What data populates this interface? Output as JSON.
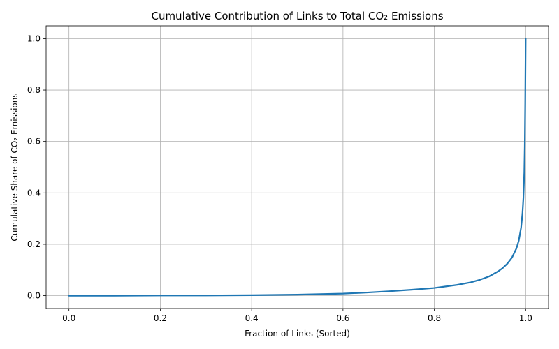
{
  "chart_data": {
    "type": "line",
    "title": "Cumulative Contribution of Links to Total CO₂ Emissions",
    "xlabel": "Fraction of Links (Sorted)",
    "ylabel": "Cumulative Share of CO₂ Emissions",
    "xlim": [
      -0.05,
      1.05
    ],
    "ylim": [
      -0.05,
      1.05
    ],
    "x_ticks": [
      0.0,
      0.2,
      0.4,
      0.6,
      0.8,
      1.0
    ],
    "x_tick_labels": [
      "0.0",
      "0.2",
      "0.4",
      "0.6",
      "0.8",
      "1.0"
    ],
    "y_ticks": [
      0.0,
      0.2,
      0.4,
      0.6,
      0.8,
      1.0
    ],
    "y_tick_labels": [
      "0.0",
      "0.2",
      "0.4",
      "0.6",
      "0.8",
      "1.0"
    ],
    "grid": true,
    "series": [
      {
        "color": "#1f77b4",
        "x": [
          0.0,
          0.1,
          0.2,
          0.3,
          0.4,
          0.5,
          0.55,
          0.6,
          0.65,
          0.7,
          0.75,
          0.8,
          0.85,
          0.88,
          0.9,
          0.92,
          0.94,
          0.95,
          0.96,
          0.97,
          0.98,
          0.985,
          0.99,
          0.993,
          0.995,
          0.997,
          0.998,
          0.999,
          1.0
        ],
        "y": [
          0.0,
          0.0,
          0.001,
          0.001,
          0.002,
          0.004,
          0.006,
          0.008,
          0.012,
          0.017,
          0.023,
          0.03,
          0.042,
          0.052,
          0.062,
          0.075,
          0.095,
          0.108,
          0.125,
          0.148,
          0.185,
          0.215,
          0.265,
          0.32,
          0.38,
          0.48,
          0.58,
          0.75,
          1.0
        ]
      }
    ]
  }
}
